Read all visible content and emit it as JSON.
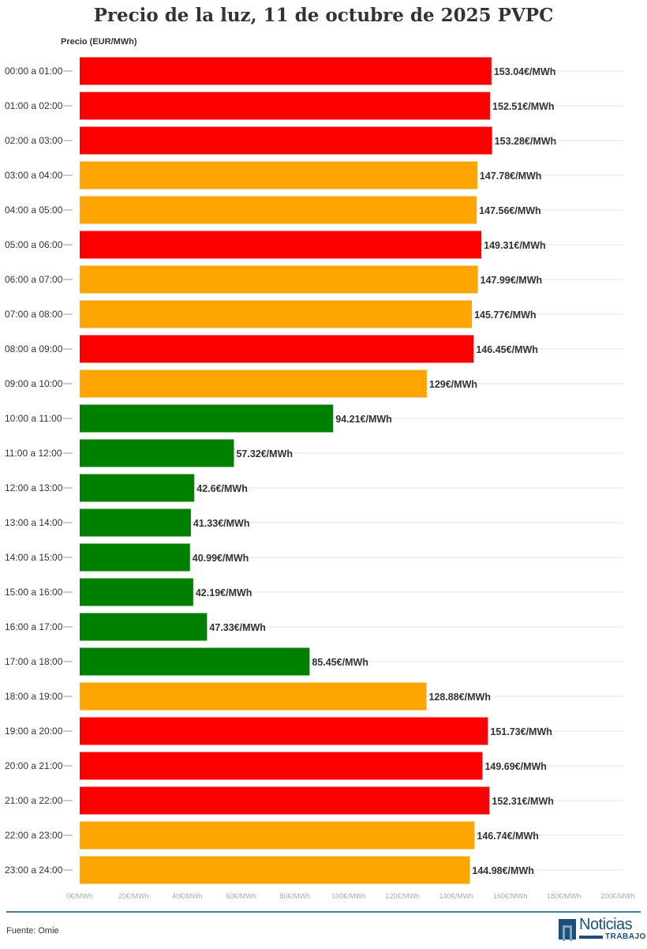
{
  "chart_data": {
    "type": "bar",
    "orientation": "horizontal",
    "title": "Precio de la luz, 11 de octubre de 2025 PVPC",
    "ylabel": "Precio (EUR/MWh)",
    "xlabel": "",
    "xlim": [
      0,
      200
    ],
    "xticks": [
      "0€/MWh",
      "20€/MWh",
      "40€/MWh",
      "60€/MWh",
      "80€/MWh",
      "100€/MWh",
      "120€/MWh",
      "140€/MWh",
      "160€/MWh",
      "180€/MWh",
      "200€/MWh"
    ],
    "grid": true,
    "categories": [
      "00:00 a 01:00",
      "01:00 a 02:00",
      "02:00 a 03:00",
      "03:00 a 04:00",
      "04:00 a 05:00",
      "05:00 a 06:00",
      "06:00 a 07:00",
      "07:00 a 08:00",
      "08:00 a 09:00",
      "09:00 a 10:00",
      "10:00 a 11:00",
      "11:00 a 12:00",
      "12:00 a 13:00",
      "13:00 a 14:00",
      "14:00 a 15:00",
      "15:00 a 16:00",
      "16:00 a 17:00",
      "17:00 a 18:00",
      "18:00 a 19:00",
      "19:00 a 20:00",
      "20:00 a 21:00",
      "21:00 a 22:00",
      "22:00 a 23:00",
      "23:00 a 24:00"
    ],
    "values": [
      153.04,
      152.51,
      153.28,
      147.78,
      147.56,
      149.31,
      147.99,
      145.77,
      146.45,
      129,
      94.21,
      57.32,
      42.6,
      41.33,
      40.99,
      42.19,
      47.33,
      85.45,
      128.88,
      151.73,
      149.69,
      152.31,
      146.74,
      144.98
    ],
    "data_labels": [
      "153.04€/MWh",
      "152.51€/MWh",
      "153.28€/MWh",
      "147.78€/MWh",
      "147.56€/MWh",
      "149.31€/MWh",
      "147.99€/MWh",
      "145.77€/MWh",
      "146.45€/MWh",
      "129€/MWh",
      "94.21€/MWh",
      "57.32€/MWh",
      "42.6€/MWh",
      "41.33€/MWh",
      "40.99€/MWh",
      "42.19€/MWh",
      "47.33€/MWh",
      "85.45€/MWh",
      "128.88€/MWh",
      "151.73€/MWh",
      "149.69€/MWh",
      "152.31€/MWh",
      "146.74€/MWh",
      "144.98€/MWh"
    ],
    "bar_colors": [
      "#ff0000",
      "#ff0000",
      "#ff0000",
      "#ffa500",
      "#ffa500",
      "#ff0000",
      "#ffa500",
      "#ffa500",
      "#ff0000",
      "#ffa500",
      "#008000",
      "#008000",
      "#008000",
      "#008000",
      "#008000",
      "#008000",
      "#008000",
      "#008000",
      "#ffa500",
      "#ff0000",
      "#ff0000",
      "#ff0000",
      "#ffa500",
      "#ffa500"
    ]
  },
  "footer": {
    "source": "Fuente: Omie",
    "logo_text": "Noticias",
    "logo_sub": "TRABAJO"
  },
  "colors": {
    "rule": "#4a7a9b",
    "brand": "#1f4f78"
  }
}
